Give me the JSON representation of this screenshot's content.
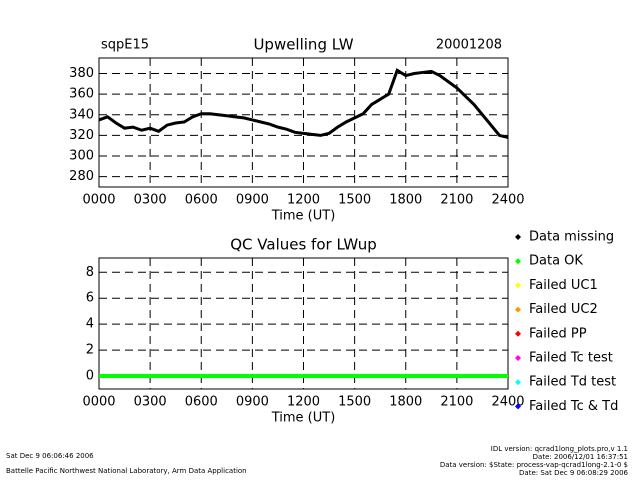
{
  "chart_data": [
    {
      "type": "line",
      "title": "Upwelling LW",
      "annotations": [
        "sqpE15",
        "20001208"
      ],
      "xlabel": "Time (UT)",
      "x": [
        0,
        0.5,
        1,
        1.5,
        2,
        2.5,
        3,
        3.5,
        4,
        4.5,
        5,
        5.5,
        6,
        6.5,
        7,
        7.5,
        8,
        8.5,
        9,
        9.5,
        10,
        10.5,
        11,
        11.5,
        12,
        12.5,
        13,
        13.5,
        14,
        14.5,
        15,
        15.5,
        16,
        16.5,
        17,
        17.5,
        18,
        18.5,
        19,
        19.5,
        20,
        20.5,
        21,
        21.5,
        22,
        22.5,
        23,
        23.5,
        24
      ],
      "values": [
        335,
        338,
        332,
        327,
        328,
        325,
        327,
        324,
        330,
        332,
        333,
        338,
        341,
        341,
        340,
        339,
        338,
        337,
        335,
        333,
        331,
        328,
        326,
        323,
        322,
        321,
        320,
        322,
        328,
        333,
        337,
        341,
        350,
        355,
        360,
        383,
        378,
        380,
        381,
        382,
        378,
        372,
        366,
        358,
        350,
        340,
        330,
        320,
        318
      ],
      "color": "#000000",
      "xlim": [
        0,
        24
      ],
      "xticks": [
        {
          "value": 0,
          "label": "0000"
        },
        {
          "value": 3,
          "label": "0300"
        },
        {
          "value": 6,
          "label": "0600"
        },
        {
          "value": 9,
          "label": "0900"
        },
        {
          "value": 12,
          "label": "1200"
        },
        {
          "value": 15,
          "label": "1500"
        },
        {
          "value": 18,
          "label": "1800"
        },
        {
          "value": 21,
          "label": "2100"
        },
        {
          "value": 24,
          "label": "2400"
        }
      ],
      "ylim": [
        270,
        395
      ],
      "yticks": [
        280,
        300,
        320,
        340,
        360,
        380
      ],
      "grid": true
    },
    {
      "type": "line",
      "title": "QC Values for LWup",
      "xlabel": "Time (UT)",
      "x": [
        0,
        24
      ],
      "values": [
        0,
        0
      ],
      "color": "#00ff00",
      "xlim": [
        0,
        24
      ],
      "xticks": [
        {
          "value": 0,
          "label": "0000"
        },
        {
          "value": 3,
          "label": "0300"
        },
        {
          "value": 6,
          "label": "0600"
        },
        {
          "value": 9,
          "label": "0900"
        },
        {
          "value": 12,
          "label": "1200"
        },
        {
          "value": 15,
          "label": "1500"
        },
        {
          "value": 18,
          "label": "1800"
        },
        {
          "value": 21,
          "label": "2100"
        },
        {
          "value": 24,
          "label": "2400"
        }
      ],
      "ylim": [
        -1,
        9.1
      ],
      "yticks": [
        0,
        2,
        4,
        6,
        8
      ],
      "grid": true,
      "legend": [
        {
          "name": "Data missing",
          "color": "#000000"
        },
        {
          "name": "Data OK",
          "color": "#00ff00"
        },
        {
          "name": "Failed UC1",
          "color": "#ffff00"
        },
        {
          "name": "Failed UC2",
          "color": "#ff9900"
        },
        {
          "name": "Failed PP",
          "color": "#ff0000"
        },
        {
          "name": "Failed Tc test",
          "color": "#ff00ff"
        },
        {
          "name": "Failed Td test",
          "color": "#00ffff"
        },
        {
          "name": "Failed Tc & Td",
          "color": "#0000ff"
        }
      ]
    }
  ],
  "footer": {
    "left": [
      "Sat Dec  9 06:06:46 2006",
      "Battelle Pacific Northwest National Laboratory, Arm Data Application"
    ],
    "right": [
      "IDL version: qcrad1long_plots.pro,v 1.1",
      "Date: 2006/12/01 16:37:51",
      "Data version: $State: process-vap-qcrad1long-2.1-0 $",
      "Date: Sat Dec  9 06:08:29 2006"
    ]
  }
}
